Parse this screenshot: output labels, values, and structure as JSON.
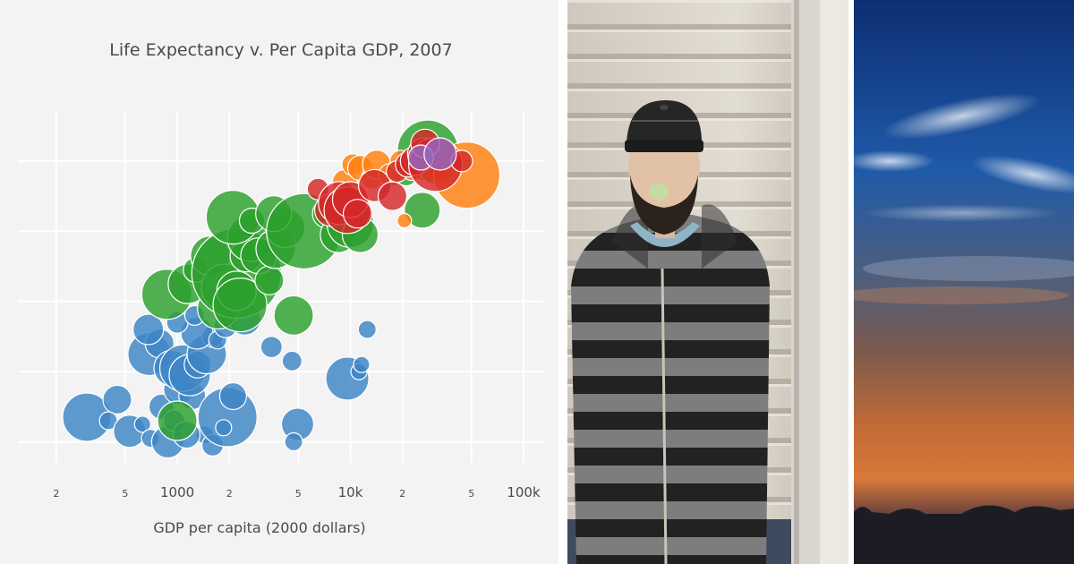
{
  "chart_data": {
    "type": "scatter",
    "title": "Life Expectancy v. Per Capita GDP, 2007",
    "xlabel": "GDP per capita (2000 dollars)",
    "ylabel": "",
    "x_scale": "log",
    "xlim": [
      120,
      130000
    ],
    "ylim": [
      37,
      87
    ],
    "xticks": [
      {
        "value": 200,
        "label": "2"
      },
      {
        "value": 500,
        "label": "5"
      },
      {
        "value": 1000,
        "label": "1000"
      },
      {
        "value": 2000,
        "label": "2"
      },
      {
        "value": 5000,
        "label": "5"
      },
      {
        "value": 10000,
        "label": "10k"
      },
      {
        "value": 20000,
        "label": "2"
      },
      {
        "value": 50000,
        "label": "5"
      },
      {
        "value": 100000,
        "label": "100k"
      }
    ],
    "yticks": [
      40,
      50,
      60,
      70,
      80
    ],
    "ytick_labels_visible": false,
    "grid": true,
    "colors": {
      "africa": "#3d85c6",
      "asia": "#2ca02c",
      "europe": "#ff7f0e",
      "americas": "#d62728",
      "oceania": "#9467bd"
    },
    "series": [
      {
        "color_key": "africa",
        "points": [
          {
            "x": 300,
            "y": 43.5,
            "r": 27
          },
          {
            "x": 450,
            "y": 46,
            "r": 16
          },
          {
            "x": 400,
            "y": 43,
            "r": 10
          },
          {
            "x": 530,
            "y": 41.5,
            "r": 18
          },
          {
            "x": 630,
            "y": 42.5,
            "r": 9
          },
          {
            "x": 700,
            "y": 40.5,
            "r": 10
          },
          {
            "x": 810,
            "y": 45,
            "r": 14
          },
          {
            "x": 880,
            "y": 40,
            "r": 18
          },
          {
            "x": 960,
            "y": 43,
            "r": 12
          },
          {
            "x": 1020,
            "y": 47.5,
            "r": 17
          },
          {
            "x": 1220,
            "y": 46.5,
            "r": 15
          },
          {
            "x": 1440,
            "y": 41,
            "r": 10
          },
          {
            "x": 1600,
            "y": 39.5,
            "r": 12
          },
          {
            "x": 1950,
            "y": 43.5,
            "r": 33
          },
          {
            "x": 2100,
            "y": 46.5,
            "r": 15
          },
          {
            "x": 1850,
            "y": 42,
            "r": 9
          },
          {
            "x": 690,
            "y": 52.5,
            "r": 24
          },
          {
            "x": 790,
            "y": 54,
            "r": 16
          },
          {
            "x": 930,
            "y": 50.5,
            "r": 20
          },
          {
            "x": 1080,
            "y": 50.5,
            "r": 26
          },
          {
            "x": 1180,
            "y": 49.5,
            "r": 23
          },
          {
            "x": 1310,
            "y": 51,
            "r": 15
          },
          {
            "x": 1480,
            "y": 52.5,
            "r": 22
          },
          {
            "x": 1600,
            "y": 55,
            "r": 12
          },
          {
            "x": 1300,
            "y": 55.5,
            "r": 18
          },
          {
            "x": 1000,
            "y": 57,
            "r": 12
          },
          {
            "x": 680,
            "y": 56,
            "r": 17
          },
          {
            "x": 1260,
            "y": 58,
            "r": 11
          },
          {
            "x": 1710,
            "y": 54.5,
            "r": 10
          },
          {
            "x": 1900,
            "y": 56.5,
            "r": 13
          },
          {
            "x": 2450,
            "y": 57.5,
            "r": 18
          },
          {
            "x": 3500,
            "y": 53.5,
            "r": 12
          },
          {
            "x": 4600,
            "y": 51.5,
            "r": 11
          },
          {
            "x": 4950,
            "y": 42.5,
            "r": 18
          },
          {
            "x": 4700,
            "y": 40,
            "r": 10
          },
          {
            "x": 9600,
            "y": 49,
            "r": 24
          },
          {
            "x": 11200,
            "y": 50,
            "r": 9
          },
          {
            "x": 11600,
            "y": 51,
            "r": 9
          },
          {
            "x": 12500,
            "y": 56,
            "r": 10
          },
          {
            "x": 1130,
            "y": 41,
            "r": 15
          }
        ]
      },
      {
        "color_key": "asia",
        "points": [
          {
            "x": 1000,
            "y": 43,
            "r": 22
          },
          {
            "x": 870,
            "y": 61,
            "r": 28
          },
          {
            "x": 1150,
            "y": 62.5,
            "r": 22
          },
          {
            "x": 1280,
            "y": 64.5,
            "r": 14
          },
          {
            "x": 1550,
            "y": 66.5,
            "r": 22
          },
          {
            "x": 1720,
            "y": 59,
            "r": 23
          },
          {
            "x": 1880,
            "y": 62,
            "r": 26
          },
          {
            "x": 2200,
            "y": 64,
            "r": 50
          },
          {
            "x": 2200,
            "y": 61.5,
            "r": 22
          },
          {
            "x": 2300,
            "y": 59.5,
            "r": 30
          },
          {
            "x": 2500,
            "y": 66.5,
            "r": 18
          },
          {
            "x": 2650,
            "y": 69,
            "r": 26
          },
          {
            "x": 2950,
            "y": 66.5,
            "r": 20
          },
          {
            "x": 3400,
            "y": 63,
            "r": 16
          },
          {
            "x": 3700,
            "y": 67.5,
            "r": 22
          },
          {
            "x": 4200,
            "y": 70.5,
            "r": 22
          },
          {
            "x": 4700,
            "y": 58,
            "r": 22
          },
          {
            "x": 2100,
            "y": 72,
            "r": 30
          },
          {
            "x": 2700,
            "y": 71.5,
            "r": 14
          },
          {
            "x": 3600,
            "y": 72.5,
            "r": 20
          },
          {
            "x": 5400,
            "y": 70,
            "r": 42
          },
          {
            "x": 7300,
            "y": 72.5,
            "r": 16
          },
          {
            "x": 8500,
            "y": 69.5,
            "r": 20
          },
          {
            "x": 10000,
            "y": 71,
            "r": 26
          },
          {
            "x": 11400,
            "y": 69.5,
            "r": 20
          },
          {
            "x": 28000,
            "y": 81.5,
            "r": 34
          },
          {
            "x": 21000,
            "y": 78,
            "r": 12
          },
          {
            "x": 33500,
            "y": 79.5,
            "r": 18
          },
          {
            "x": 26000,
            "y": 73,
            "r": 20
          }
        ]
      },
      {
        "color_key": "europe",
        "points": [
          {
            "x": 9300,
            "y": 77,
            "r": 14
          },
          {
            "x": 10300,
            "y": 79.5,
            "r": 12
          },
          {
            "x": 11400,
            "y": 79,
            "r": 14
          },
          {
            "x": 13300,
            "y": 77.5,
            "r": 12
          },
          {
            "x": 14200,
            "y": 79.5,
            "r": 16
          },
          {
            "x": 17000,
            "y": 78,
            "r": 13
          },
          {
            "x": 19500,
            "y": 80,
            "r": 12
          },
          {
            "x": 22800,
            "y": 79,
            "r": 14
          },
          {
            "x": 26500,
            "y": 80.5,
            "r": 12
          },
          {
            "x": 31000,
            "y": 79,
            "r": 18
          },
          {
            "x": 47000,
            "y": 78,
            "r": 37
          },
          {
            "x": 20500,
            "y": 71.5,
            "r": 8
          }
        ]
      },
      {
        "color_key": "americas",
        "points": [
          {
            "x": 6500,
            "y": 76,
            "r": 12
          },
          {
            "x": 7700,
            "y": 73,
            "r": 18
          },
          {
            "x": 8700,
            "y": 74,
            "r": 24
          },
          {
            "x": 9600,
            "y": 73,
            "r": 26
          },
          {
            "x": 10000,
            "y": 74.5,
            "r": 20
          },
          {
            "x": 11000,
            "y": 72.5,
            "r": 16
          },
          {
            "x": 13800,
            "y": 76.5,
            "r": 18
          },
          {
            "x": 17500,
            "y": 75,
            "r": 16
          },
          {
            "x": 18600,
            "y": 78.5,
            "r": 12
          },
          {
            "x": 21500,
            "y": 79.5,
            "r": 14
          },
          {
            "x": 23500,
            "y": 80,
            "r": 16
          },
          {
            "x": 26500,
            "y": 81,
            "r": 18
          },
          {
            "x": 31000,
            "y": 79.5,
            "r": 30
          },
          {
            "x": 27000,
            "y": 82.5,
            "r": 16
          },
          {
            "x": 44000,
            "y": 80,
            "r": 12
          }
        ]
      },
      {
        "color_key": "oceania",
        "points": [
          {
            "x": 25500,
            "y": 80.5,
            "r": 14
          },
          {
            "x": 33000,
            "y": 81,
            "r": 18
          }
        ]
      }
    ]
  }
}
